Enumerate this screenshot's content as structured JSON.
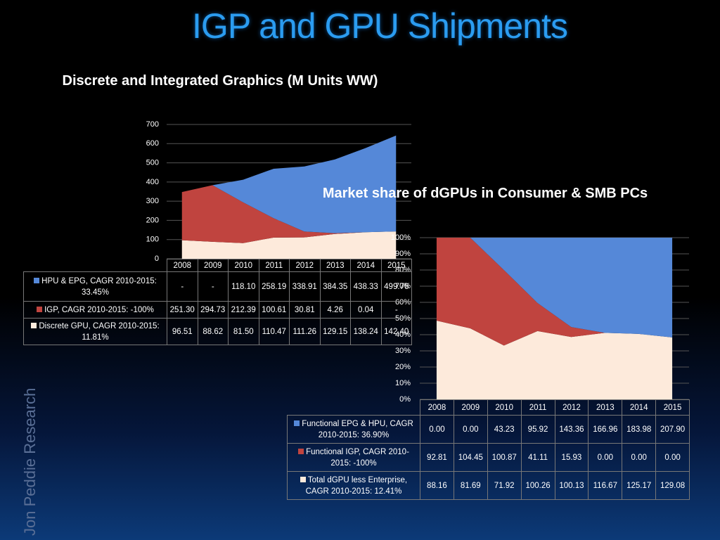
{
  "title": "IGP and GPU Shipments",
  "side_text": "Jon Peddie Research",
  "chart_data": [
    {
      "type": "area",
      "stack": "normal",
      "title": "Discrete and Integrated Graphics (M Units WW)",
      "categories": [
        "2008",
        "2009",
        "2010",
        "2011",
        "2012",
        "2013",
        "2014",
        "2015"
      ],
      "series": [
        {
          "name": "HPU & EPG, CAGR 2010-2015: 33.45%",
          "color": "#5588d8",
          "values": [
            0,
            0,
            118.1,
            258.19,
            338.91,
            384.35,
            438.33,
            499.76
          ],
          "value_labels": [
            "-",
            "-",
            "118.10",
            "258.19",
            "338.91",
            "384.35",
            "438.33",
            "499.76"
          ]
        },
        {
          "name": "IGP, CAGR 2010-2015: -100%",
          "color": "#c0443f",
          "values": [
            251.3,
            294.73,
            212.39,
            100.61,
            30.81,
            4.26,
            0.04,
            0
          ],
          "value_labels": [
            "251.30",
            "294.73",
            "212.39",
            "100.61",
            "30.81",
            "4.26",
            "0.04",
            "-"
          ]
        },
        {
          "name": "Discrete GPU, CAGR 2010-2015: 11.81%",
          "color": "#fdeadb",
          "values": [
            96.51,
            88.62,
            81.5,
            110.47,
            111.26,
            129.15,
            138.24,
            142.4
          ],
          "value_labels": [
            "96.51",
            "88.62",
            "81.50",
            "110.47",
            "111.26",
            "129.15",
            "138.24",
            "142.40"
          ]
        }
      ],
      "ylim": [
        0,
        700
      ],
      "yticks": [
        0,
        100,
        200,
        300,
        400,
        500,
        600,
        700
      ],
      "grid": true
    },
    {
      "type": "area",
      "stack": "percent",
      "title": "Market share of dGPUs in Consumer & SMB PCs",
      "categories": [
        "2008",
        "2009",
        "2010",
        "2011",
        "2012",
        "2013",
        "2014",
        "2015"
      ],
      "series": [
        {
          "name": "Functional EPG & HPU, CAGR 2010-2015: 36.90%",
          "color": "#5588d8",
          "values": [
            0.0,
            0.0,
            43.23,
            95.92,
            143.36,
            166.96,
            183.98,
            207.9
          ],
          "value_labels": [
            "0.00",
            "0.00",
            "43.23",
            "95.92",
            "143.36",
            "166.96",
            "183.98",
            "207.90"
          ]
        },
        {
          "name": "Functional IGP, CAGR 2010-2015: -100%",
          "color": "#c0443f",
          "values": [
            92.81,
            104.45,
            100.87,
            41.11,
            15.93,
            0.0,
            0.0,
            0.0
          ],
          "value_labels": [
            "92.81",
            "104.45",
            "100.87",
            "41.11",
            "15.93",
            "0.00",
            "0.00",
            "0.00"
          ]
        },
        {
          "name": "Total dGPU less Enterprise, CAGR 2010-2015: 12.41%",
          "color": "#fdeadb",
          "values": [
            88.16,
            81.69,
            71.92,
            100.26,
            100.13,
            116.67,
            125.17,
            129.08
          ],
          "value_labels": [
            "88.16",
            "81.69",
            "71.92",
            "100.26",
            "100.13",
            "116.67",
            "125.17",
            "129.08"
          ]
        }
      ],
      "ylim": [
        0,
        100
      ],
      "yticks": [
        {
          "value": 0,
          "label": "0%"
        },
        {
          "value": 10,
          "label": "10%"
        },
        {
          "value": 20,
          "label": "20%"
        },
        {
          "value": 30,
          "label": "30%"
        },
        {
          "value": 40,
          "label": "40%"
        },
        {
          "value": 50,
          "label": "50%"
        },
        {
          "value": 60,
          "label": "60%"
        },
        {
          "value": 70,
          "label": "70%"
        },
        {
          "value": 80,
          "label": "80%"
        },
        {
          "value": 90,
          "label": "90%"
        },
        {
          "value": 100,
          "label": "100%"
        }
      ],
      "grid": true
    }
  ]
}
